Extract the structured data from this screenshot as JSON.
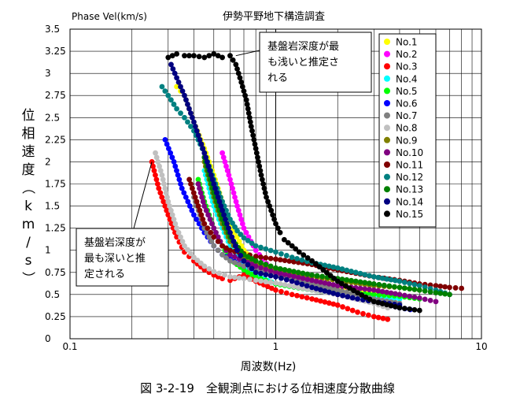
{
  "chart_data": {
    "type": "scatter",
    "title": "伊勢平野地下構造調査",
    "y_unit_label": "Phase Vel(km/s)",
    "ylabel": "位相速度（km/s）",
    "xlabel": "周波数(Hz)",
    "caption": "図 3-2-19　全観測点における位相速度分散曲線",
    "x_scale": "log",
    "xlim": [
      0.1,
      10
    ],
    "ylim": [
      0,
      3.5
    ],
    "x_tick_labels": [
      "0.1",
      "1",
      "10"
    ],
    "y_tick_labels": [
      "0",
      "0.25",
      "0.5",
      "0.75",
      "1",
      "1.25",
      "1.5",
      "1.75",
      "2",
      "2.25",
      "2.5",
      "2.75",
      "3",
      "3.25",
      "3.5"
    ],
    "grid": true,
    "legend_position": "top-right",
    "annotations": [
      {
        "text_lines": [
          "基盤岩深度が最",
          "も浅いと推定さ",
          "れる"
        ],
        "points_to": {
          "x": 0.64,
          "y": 3.2
        }
      },
      {
        "text_lines": [
          "基盤岩深度が",
          "最も深いと推",
          "定される"
        ],
        "points_to": {
          "x": 0.25,
          "y": 2.0
        }
      }
    ],
    "series": [
      {
        "name": "No.1",
        "color": "#ffff00",
        "x": [
          0.33,
          0.36,
          0.4,
          0.45,
          0.5,
          0.55,
          0.6,
          0.7,
          0.8,
          1.0,
          1.2,
          1.5,
          2.0,
          2.5,
          3.0,
          4.0
        ],
        "y": [
          2.85,
          2.75,
          2.45,
          2.15,
          1.85,
          1.55,
          1.3,
          1.0,
          0.85,
          0.75,
          0.68,
          0.62,
          0.58,
          0.55,
          0.52,
          0.5
        ]
      },
      {
        "name": "No.2",
        "color": "#ff00ff",
        "x": [
          0.55,
          0.6,
          0.65,
          0.7,
          0.8,
          0.9,
          1.0,
          1.2,
          1.5,
          2.0,
          2.5,
          3.0
        ],
        "y": [
          2.1,
          1.8,
          1.5,
          1.25,
          1.0,
          0.85,
          0.75,
          0.65,
          0.58,
          0.5,
          0.45,
          0.42
        ]
      },
      {
        "name": "No.3",
        "color": "#ff0000",
        "x": [
          0.25,
          0.27,
          0.3,
          0.33,
          0.36,
          0.4,
          0.45,
          0.5,
          0.55,
          0.6,
          0.7,
          0.8,
          1.0,
          1.2,
          1.5,
          2.0,
          2.5,
          3.0,
          3.5
        ],
        "y": [
          2.0,
          1.7,
          1.4,
          1.15,
          0.98,
          0.88,
          0.78,
          0.72,
          0.68,
          0.66,
          0.72,
          0.65,
          0.55,
          0.5,
          0.45,
          0.38,
          0.3,
          0.25,
          0.22
        ]
      },
      {
        "name": "No.4",
        "color": "#00ffff",
        "x": [
          0.45,
          0.5,
          0.55,
          0.6,
          0.7,
          0.8,
          1.0,
          1.5,
          2.0,
          3.0,
          4.0
        ],
        "y": [
          1.9,
          1.5,
          1.25,
          1.05,
          0.85,
          0.72,
          0.62,
          0.55,
          0.52,
          0.48,
          0.45
        ]
      },
      {
        "name": "No.5",
        "color": "#00ff00",
        "x": [
          0.42,
          0.45,
          0.5,
          0.55,
          0.6,
          0.7,
          0.8,
          1.0,
          1.5,
          2.0,
          3.0,
          4.0,
          5.0
        ],
        "y": [
          1.8,
          1.55,
          1.25,
          1.05,
          0.9,
          0.78,
          0.7,
          0.62,
          0.55,
          0.52,
          0.5,
          0.48,
          0.45
        ]
      },
      {
        "name": "No.6",
        "color": "#0000ff",
        "x": [
          0.29,
          0.32,
          0.35,
          0.4,
          0.45,
          0.5,
          0.55,
          0.6,
          0.7,
          0.8,
          1.0,
          1.5,
          2.0,
          3.0,
          4.0,
          4.5
        ],
        "y": [
          2.25,
          2.0,
          1.7,
          1.4,
          1.2,
          1.05,
          0.95,
          0.9,
          0.82,
          0.78,
          0.72,
          0.62,
          0.55,
          0.42,
          0.35,
          0.33
        ]
      },
      {
        "name": "No.7",
        "color": "#808080",
        "x": [
          0.4,
          0.45,
          0.5,
          0.55,
          0.6,
          0.7,
          0.8,
          1.0,
          1.5,
          2.0,
          3.0,
          4.0
        ],
        "y": [
          1.6,
          1.25,
          1.05,
          0.95,
          0.88,
          0.82,
          0.78,
          0.72,
          0.62,
          0.55,
          0.45,
          0.4
        ]
      },
      {
        "name": "No.8",
        "color": "#c0c0c0",
        "x": [
          0.26,
          0.28,
          0.3,
          0.33,
          0.36,
          0.4,
          0.45,
          0.5,
          0.6,
          0.7,
          0.8,
          1.0,
          1.5,
          2.0,
          3.0,
          3.5
        ],
        "y": [
          2.1,
          1.85,
          1.55,
          1.25,
          1.05,
          0.92,
          0.82,
          0.76,
          0.7,
          0.68,
          0.66,
          0.63,
          0.55,
          0.5,
          0.4,
          0.35
        ]
      },
      {
        "name": "No.9",
        "color": "#808000",
        "x": [
          0.45,
          0.5,
          0.55,
          0.6,
          0.7,
          0.8,
          1.0,
          1.5,
          2.0,
          3.0,
          4.0,
          5.0
        ],
        "y": [
          2.0,
          1.6,
          1.3,
          1.1,
          0.92,
          0.85,
          0.78,
          0.7,
          0.66,
          0.6,
          0.58,
          0.55
        ]
      },
      {
        "name": "No.10",
        "color": "#800080",
        "x": [
          0.42,
          0.45,
          0.5,
          0.55,
          0.6,
          0.7,
          0.8,
          1.0,
          1.5,
          2.0,
          3.0,
          4.0,
          5.0,
          6.0
        ],
        "y": [
          1.75,
          1.5,
          1.25,
          1.05,
          0.95,
          0.88,
          0.82,
          0.75,
          0.66,
          0.6,
          0.55,
          0.5,
          0.46,
          0.42
        ]
      },
      {
        "name": "No.11",
        "color": "#800000",
        "x": [
          0.38,
          0.42,
          0.45,
          0.5,
          0.55,
          0.6,
          0.7,
          0.8,
          1.0,
          1.5,
          2.0,
          3.0,
          4.0,
          5.0,
          6.0,
          7.0,
          8.0
        ],
        "y": [
          1.8,
          1.5,
          1.3,
          1.15,
          1.05,
          1.0,
          0.96,
          0.93,
          0.9,
          0.84,
          0.78,
          0.7,
          0.66,
          0.62,
          0.6,
          0.58,
          0.57
        ]
      },
      {
        "name": "No.12",
        "color": "#008080",
        "x": [
          0.28,
          0.3,
          0.33,
          0.36,
          0.4,
          0.45,
          0.5,
          0.55,
          0.6,
          0.65,
          0.7,
          0.8,
          1.0,
          1.2,
          1.5,
          2.0,
          3.0,
          4.0,
          5.0,
          6.0,
          7.0
        ],
        "y": [
          2.85,
          2.75,
          2.6,
          2.5,
          2.35,
          2.1,
          1.8,
          1.55,
          1.35,
          1.22,
          1.14,
          1.05,
          0.98,
          0.92,
          0.86,
          0.8,
          0.7,
          0.65,
          0.6,
          0.55,
          0.5
        ]
      },
      {
        "name": "No.13",
        "color": "#008000",
        "x": [
          0.45,
          0.5,
          0.55,
          0.6,
          0.7,
          0.8,
          1.0,
          1.5,
          2.0,
          3.0,
          4.0,
          5.0,
          6.0,
          7.0
        ],
        "y": [
          2.05,
          1.65,
          1.35,
          1.15,
          0.95,
          0.88,
          0.8,
          0.72,
          0.68,
          0.62,
          0.58,
          0.55,
          0.52,
          0.5
        ]
      },
      {
        "name": "No.14",
        "color": "#000080",
        "x": [
          0.31,
          0.33,
          0.36,
          0.4,
          0.45,
          0.5,
          0.55,
          0.6,
          0.65,
          0.7,
          0.8,
          1.0,
          1.2,
          1.5,
          2.0,
          2.5,
          3.0,
          4.0
        ],
        "y": [
          3.1,
          2.95,
          2.75,
          2.45,
          2.1,
          1.75,
          1.45,
          1.2,
          1.0,
          0.88,
          0.75,
          0.7,
          0.65,
          0.58,
          0.5,
          0.45,
          0.42,
          0.38
        ]
      },
      {
        "name": "No.15",
        "color": "#000000",
        "x": [
          0.3,
          0.33,
          0.36,
          0.4,
          0.45,
          0.5,
          0.55,
          0.6,
          0.64,
          0.68,
          0.72,
          0.76,
          0.8,
          0.85,
          0.9,
          0.95,
          1.0,
          1.05,
          1.1,
          1.2,
          1.3,
          1.5,
          1.7,
          2.0,
          2.5,
          3.0,
          4.0,
          5.0
        ],
        "y": [
          3.18,
          3.22,
          3.2,
          3.2,
          3.18,
          3.22,
          3.18,
          3.2,
          3.1,
          2.9,
          2.7,
          2.4,
          2.15,
          1.85,
          1.6,
          1.45,
          1.3,
          1.2,
          1.12,
          1.05,
          0.98,
          0.88,
          0.78,
          0.65,
          0.52,
          0.42,
          0.35,
          0.32
        ]
      }
    ]
  }
}
